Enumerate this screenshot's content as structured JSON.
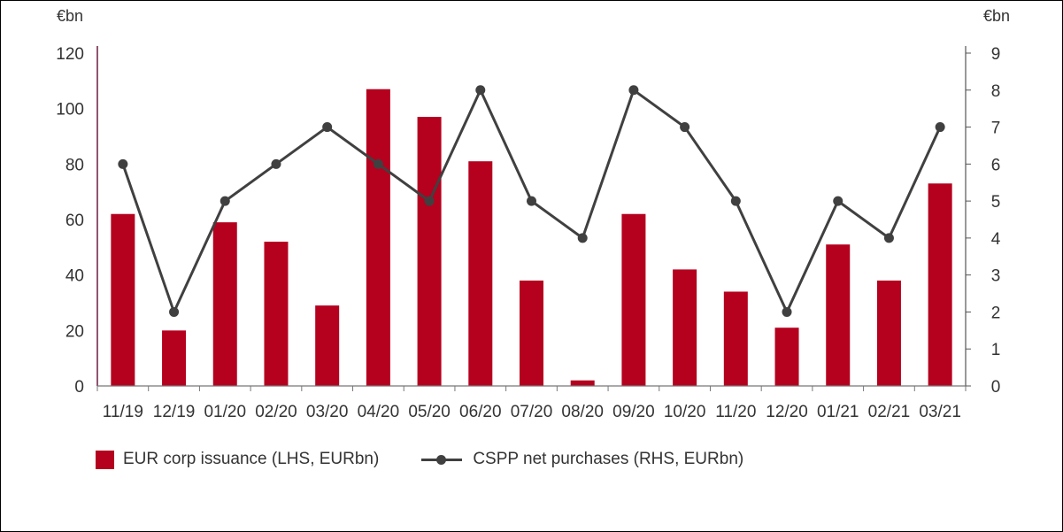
{
  "chart_data": {
    "type": "bar",
    "categories": [
      "11/19",
      "12/19",
      "01/20",
      "02/20",
      "03/20",
      "04/20",
      "05/20",
      "06/20",
      "07/20",
      "08/20",
      "09/20",
      "10/20",
      "11/20",
      "12/20",
      "01/21",
      "02/21",
      "03/21"
    ],
    "series": [
      {
        "name": "EUR corp issuance (LHS, EURbn)",
        "type": "bar",
        "axis": "left",
        "values": [
          62,
          20,
          59,
          52,
          29,
          107,
          97,
          81,
          38,
          2,
          62,
          42,
          34,
          21,
          51,
          38,
          73
        ]
      },
      {
        "name": "CSPP net purchases (RHS, EURbn)",
        "type": "line",
        "axis": "right",
        "values": [
          6,
          2,
          5,
          6,
          7,
          6,
          5,
          8,
          5,
          4,
          8,
          7,
          5,
          2,
          5,
          4,
          7
        ]
      }
    ],
    "ylabel_left": "€bn",
    "ylabel_right": "€bn",
    "ylim_left": [
      0,
      120
    ],
    "ylim_right": [
      0,
      9
    ],
    "yticks_left": [
      "0",
      "20",
      "40",
      "60",
      "80",
      "100",
      "120"
    ],
    "yticks_right": [
      "0",
      "1",
      "2",
      "3",
      "4",
      "5",
      "6",
      "7",
      "8",
      "9"
    ],
    "grid": false,
    "legend_position": "bottom-left",
    "colors": {
      "bar": "#B5001E",
      "line": "#404040",
      "left_axis": "#6B1D3E",
      "right_axis": "#555555"
    }
  }
}
